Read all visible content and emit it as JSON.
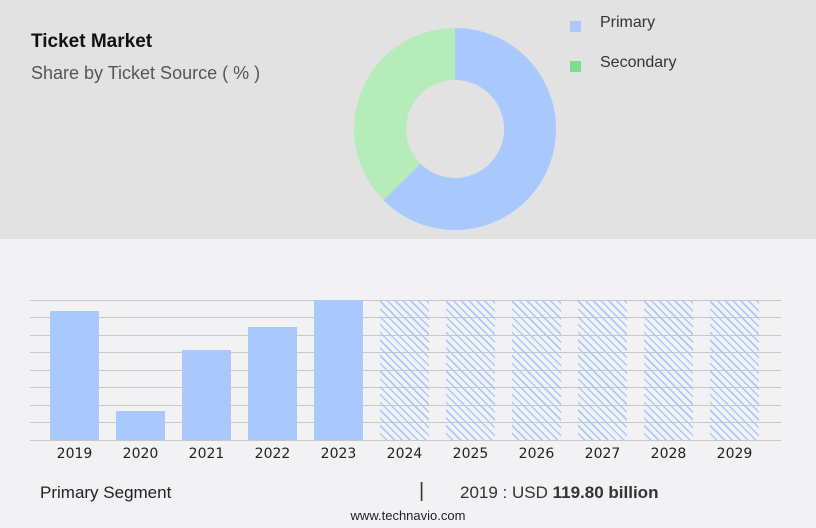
{
  "header": {
    "title": "Ticket Market",
    "subtitle": "Share by Ticket Source ( % )"
  },
  "legend": [
    {
      "label": "Primary",
      "color": "#a8c8fe"
    },
    {
      "label": "Secondary",
      "color": "#77e08f"
    }
  ],
  "footer": {
    "segment": "Primary Segment",
    "separator": "|",
    "value_prefix": "2019 : USD",
    "value": "119.80 billion",
    "site": "www.technavio.com"
  },
  "chart_data": [
    {
      "type": "pie",
      "title": "Share by Ticket Source ( % )",
      "donut": true,
      "categories": [
        "Primary",
        "Secondary"
      ],
      "values": [
        63,
        37
      ],
      "colors": [
        "#a8c8fe",
        "#b6ecb9"
      ],
      "legend_position": "right"
    },
    {
      "type": "bar",
      "title": "Primary Segment",
      "categories": [
        "2019",
        "2020",
        "2021",
        "2022",
        "2023",
        "2024",
        "2025",
        "2026",
        "2027",
        "2028",
        "2029"
      ],
      "values": [
        119.8,
        27,
        83.6,
        105,
        130,
        null,
        null,
        null,
        null,
        null,
        null
      ],
      "forecast": [
        false,
        false,
        false,
        false,
        false,
        true,
        true,
        true,
        true,
        true,
        true
      ],
      "annotation": "2019 : USD 119.80 billion",
      "xlabel": "",
      "ylabel": "",
      "grid": true,
      "color": "#a8c8fe"
    }
  ]
}
